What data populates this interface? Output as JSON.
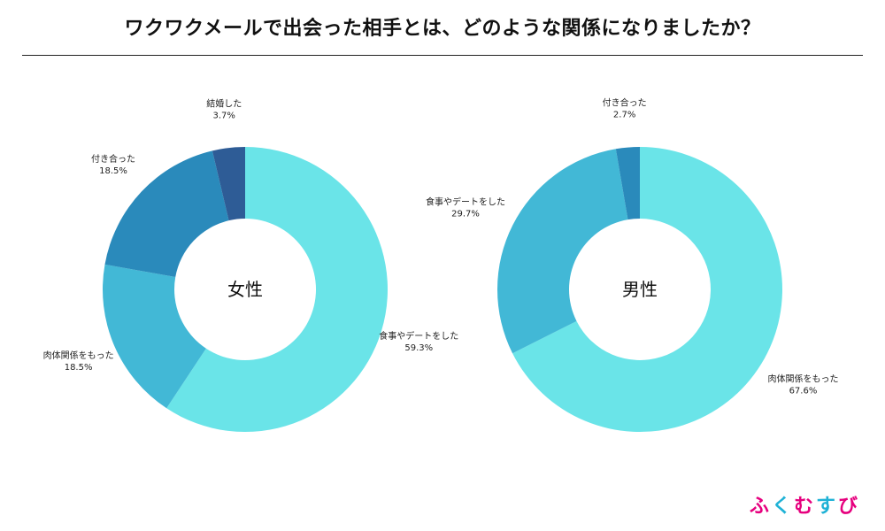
{
  "title": "ワクワクメールで出会った相手とは、どのような関係になりましたか？",
  "brand": {
    "chars": [
      "ふ",
      "く",
      "む",
      "す",
      "び"
    ],
    "colors": [
      "#e6007e",
      "#1fb2d6",
      "#e6007e",
      "#1fb2d6",
      "#e6007e"
    ]
  },
  "chart_data": [
    {
      "type": "pie",
      "center_label": "女性",
      "slices": [
        {
          "label": "食事やデートをした",
          "value": 59.3,
          "value_label": "59.3%",
          "color": "#6ae4e8"
        },
        {
          "label": "肉体関係をもった",
          "value": 18.5,
          "value_label": "18.5%",
          "color": "#42b8d6"
        },
        {
          "label": "付き合った",
          "value": 18.5,
          "value_label": "18.5%",
          "color": "#2a8abb"
        },
        {
          "label": "結婚した",
          "value": 3.7,
          "value_label": "3.7%",
          "color": "#2e5c96"
        }
      ]
    },
    {
      "type": "pie",
      "center_label": "男性",
      "slices": [
        {
          "label": "肉体関係をもった",
          "value": 67.6,
          "value_label": "67.6%",
          "color": "#6ae4e8"
        },
        {
          "label": "食事やデートをした",
          "value": 29.7,
          "value_label": "29.7%",
          "color": "#42b8d6"
        },
        {
          "label": "付き合った",
          "value": 2.7,
          "value_label": "2.7%",
          "color": "#2a8abb"
        }
      ]
    }
  ]
}
